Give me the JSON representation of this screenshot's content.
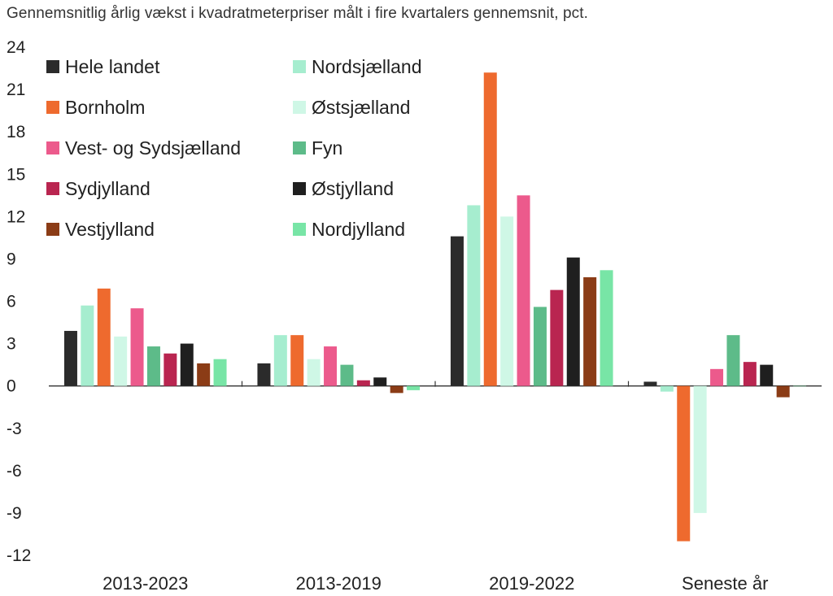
{
  "chart_data": {
    "type": "bar",
    "title": "Gennemsnitlig årlig vækst i kvadratmeterpriser målt i fire kvartalers gennemsnit, pct.",
    "xlabel": "",
    "ylabel": "",
    "ylim": [
      -12,
      24
    ],
    "yticks": [
      24,
      21,
      18,
      15,
      12,
      9,
      6,
      3,
      0,
      -3,
      -6,
      -9,
      -12
    ],
    "grid": false,
    "legend_position": "top-left",
    "categories": [
      "2013-2023",
      "2013-2019",
      "2019-2022",
      "Seneste år"
    ],
    "series": [
      {
        "name": "Hele landet",
        "color": "#2b2b2b",
        "values": [
          3.9,
          1.6,
          10.6,
          0.3
        ]
      },
      {
        "name": "Nordsjælland",
        "color": "#a6edcf",
        "values": [
          5.7,
          3.6,
          12.8,
          -0.4
        ]
      },
      {
        "name": "Bornholm",
        "color": "#ee6a2e",
        "values": [
          6.9,
          3.6,
          22.2,
          -11.0
        ]
      },
      {
        "name": "Østsjælland",
        "color": "#cff7e6",
        "values": [
          3.5,
          1.9,
          12.0,
          -9.0
        ]
      },
      {
        "name": "Vest- og Sydsjælland",
        "color": "#ec5a8c",
        "values": [
          5.5,
          2.8,
          13.5,
          1.2
        ]
      },
      {
        "name": "Fyn",
        "color": "#5dbb89",
        "values": [
          2.8,
          1.5,
          5.6,
          3.6
        ]
      },
      {
        "name": "Sydjylland",
        "color": "#b92550",
        "values": [
          2.3,
          0.4,
          6.8,
          1.7
        ]
      },
      {
        "name": "Østjylland",
        "color": "#1f1f1f",
        "values": [
          3.0,
          0.6,
          9.1,
          1.5
        ]
      },
      {
        "name": "Vestjylland",
        "color": "#8b3c16",
        "values": [
          1.6,
          -0.5,
          7.7,
          -0.8
        ]
      },
      {
        "name": "Nordjylland",
        "color": "#78e5a6",
        "values": [
          1.9,
          -0.3,
          8.2,
          0.0
        ]
      }
    ]
  }
}
